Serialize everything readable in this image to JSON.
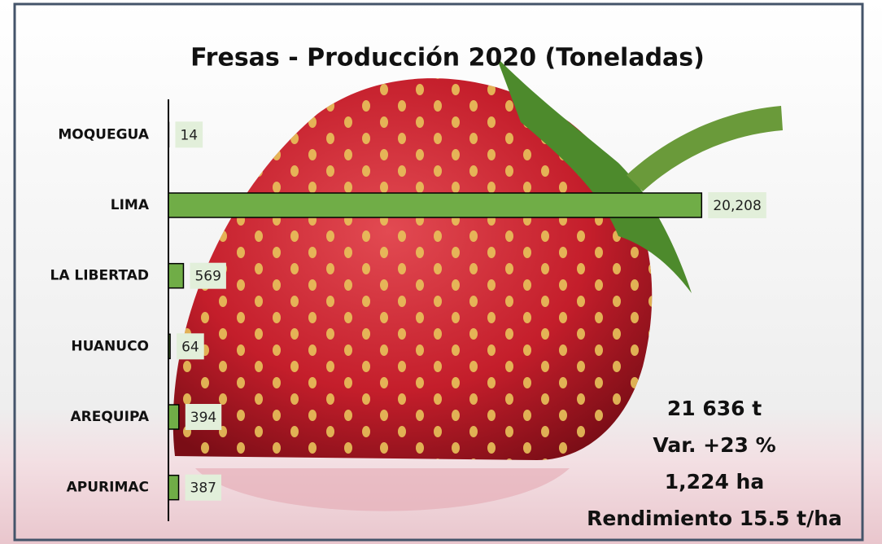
{
  "chart_data": {
    "type": "bar",
    "orientation": "horizontal",
    "title": "Fresas - Producción 2020 (Toneladas)",
    "categories": [
      "MOQUEGUA",
      "LIMA",
      "LA LIBERTAD",
      "HUANUCO",
      "AREQUIPA",
      "APURIMAC"
    ],
    "values": [
      14,
      20208,
      569,
      64,
      394,
      387
    ],
    "value_labels": [
      "14",
      "20,208",
      "569",
      "64",
      "394",
      "387"
    ],
    "color": "#70ad47",
    "xlim": [
      0,
      21000
    ],
    "annotations": [
      "21 636 t",
      "Var. +23 %",
      "1,224 ha",
      "Rendimiento 15.5 t/ha"
    ]
  }
}
